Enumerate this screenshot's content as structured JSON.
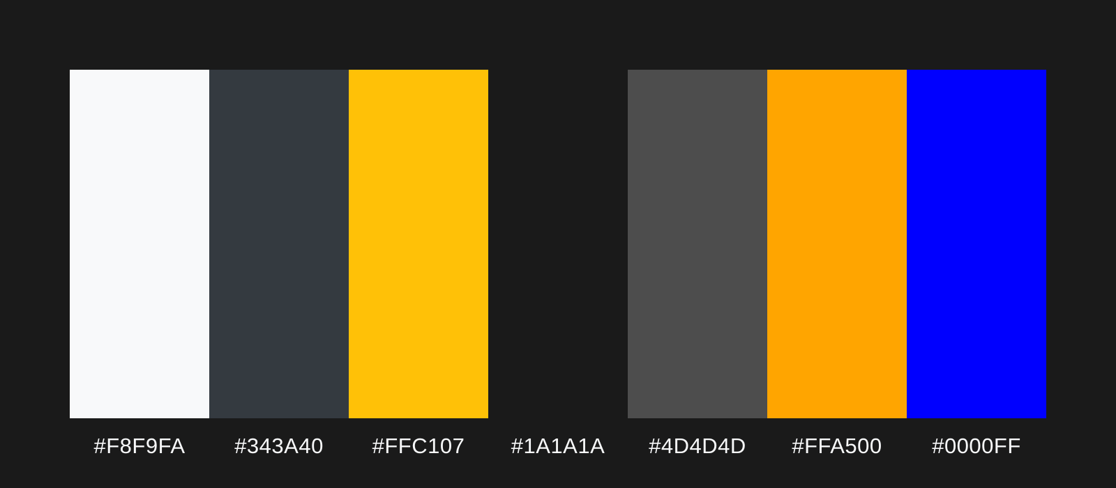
{
  "background": "#1A1A1A",
  "label_color": "#F8F9FA",
  "swatches": [
    {
      "color": "#F8F9FA",
      "label": "#F8F9FA"
    },
    {
      "color": "#343A40",
      "label": "#343A40"
    },
    {
      "color": "#FFC107",
      "label": "#FFC107"
    },
    {
      "color": "#1A1A1A",
      "label": "#1A1A1A"
    },
    {
      "color": "#4D4D4D",
      "label": "#4D4D4D"
    },
    {
      "color": "#FFA500",
      "label": "#FFA500"
    },
    {
      "color": "#0000FF",
      "label": "#0000FF"
    }
  ]
}
